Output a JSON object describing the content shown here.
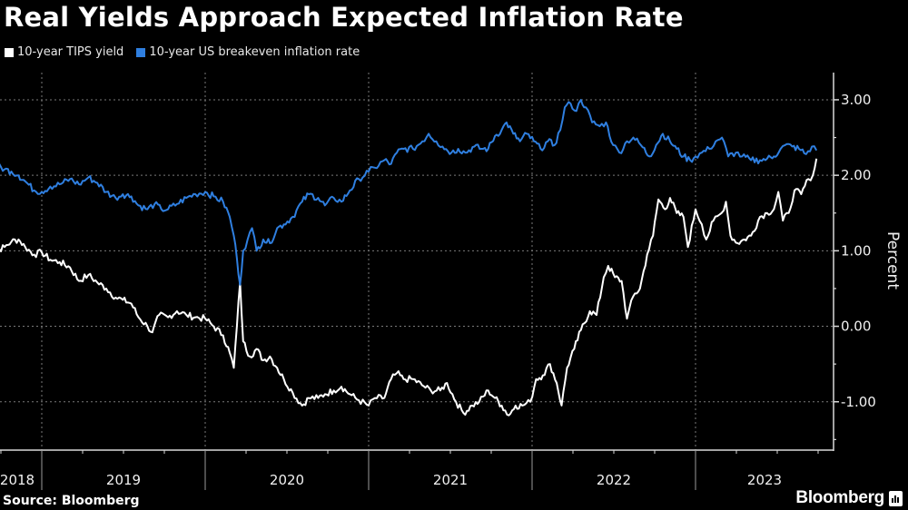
{
  "title": "Real Yields Approach Expected Inflation Rate",
  "footer": {
    "source": "Source: Bloomberg",
    "brand": "Bloomberg",
    "brand_icon": "bloomberg-terminal-icon"
  },
  "colors": {
    "background": "#000000",
    "tips": "#ffffff",
    "breakeven": "#2f7fe0",
    "grid": "#7a7a7a",
    "axis": "#d9d9d9"
  },
  "chart_data": {
    "type": "line",
    "title": "Real Yields Approach Expected Inflation Rate",
    "xlabel": "",
    "ylabel": "Percent",
    "y_axis_side": "right",
    "ylim": [
      -1.64,
      3.36
    ],
    "xlim": [
      "2018-09-01",
      "2023-12-31"
    ],
    "y_ticks": [
      3.0,
      2.0,
      1.0,
      0.0,
      -1.0
    ],
    "y_tick_labels": [
      "3.00",
      "2.00",
      "1.00",
      "0.00",
      "-1.00"
    ],
    "x_tick_labels": [
      "2018",
      "2019",
      "2020",
      "2021",
      "2022",
      "2023"
    ],
    "x_tick_years": [
      2018,
      2019,
      2020,
      2021,
      2022,
      2023
    ],
    "grid": true,
    "legend_position": "top-left",
    "series": [
      {
        "name": "10-year TIPS yield",
        "color": "#ffffff",
        "points": [
          [
            "2018-09-01",
            0.9
          ],
          [
            "2018-09-20",
            1.0
          ],
          [
            "2018-10-10",
            1.05
          ],
          [
            "2018-10-25",
            1.12
          ],
          [
            "2018-11-10",
            1.15
          ],
          [
            "2018-11-25",
            1.05
          ],
          [
            "2018-12-15",
            0.95
          ],
          [
            "2019-01-01",
            0.98
          ],
          [
            "2019-01-20",
            0.88
          ],
          [
            "2019-02-10",
            0.85
          ],
          [
            "2019-03-05",
            0.78
          ],
          [
            "2019-03-25",
            0.6
          ],
          [
            "2019-04-15",
            0.68
          ],
          [
            "2019-05-05",
            0.58
          ],
          [
            "2019-05-25",
            0.5
          ],
          [
            "2019-06-15",
            0.38
          ],
          [
            "2019-07-01",
            0.35
          ],
          [
            "2019-07-20",
            0.3
          ],
          [
            "2019-08-05",
            0.12
          ],
          [
            "2019-08-25",
            0.0
          ],
          [
            "2019-09-05",
            -0.08
          ],
          [
            "2019-09-20",
            0.15
          ],
          [
            "2019-10-10",
            0.12
          ],
          [
            "2019-10-30",
            0.2
          ],
          [
            "2019-11-20",
            0.15
          ],
          [
            "2019-12-10",
            0.12
          ],
          [
            "2020-01-01",
            0.1
          ],
          [
            "2020-01-20",
            0.0
          ],
          [
            "2020-02-10",
            -0.12
          ],
          [
            "2020-02-25",
            -0.35
          ],
          [
            "2020-03-05",
            -0.55
          ],
          [
            "2020-03-12",
            0.0
          ],
          [
            "2020-03-19",
            0.58
          ],
          [
            "2020-03-26",
            -0.2
          ],
          [
            "2020-04-10",
            -0.4
          ],
          [
            "2020-04-25",
            -0.3
          ],
          [
            "2020-05-10",
            -0.45
          ],
          [
            "2020-05-25",
            -0.4
          ],
          [
            "2020-06-10",
            -0.55
          ],
          [
            "2020-06-25",
            -0.7
          ],
          [
            "2020-07-15",
            -0.88
          ],
          [
            "2020-08-05",
            -1.05
          ],
          [
            "2020-08-20",
            -0.95
          ],
          [
            "2020-09-10",
            -0.95
          ],
          [
            "2020-09-25",
            -0.9
          ],
          [
            "2020-10-15",
            -0.85
          ],
          [
            "2020-11-01",
            -0.8
          ],
          [
            "2020-11-20",
            -0.9
          ],
          [
            "2020-12-10",
            -0.98
          ],
          [
            "2021-01-01",
            -1.05
          ],
          [
            "2021-01-15",
            -0.95
          ],
          [
            "2021-02-05",
            -0.95
          ],
          [
            "2021-02-20",
            -0.7
          ],
          [
            "2021-03-05",
            -0.62
          ],
          [
            "2021-03-20",
            -0.7
          ],
          [
            "2021-04-10",
            -0.7
          ],
          [
            "2021-04-30",
            -0.78
          ],
          [
            "2021-05-20",
            -0.85
          ],
          [
            "2021-06-10",
            -0.85
          ],
          [
            "2021-06-25",
            -0.75
          ],
          [
            "2021-07-15",
            -1.0
          ],
          [
            "2021-08-01",
            -1.15
          ],
          [
            "2021-08-20",
            -1.05
          ],
          [
            "2021-09-05",
            -1.0
          ],
          [
            "2021-09-25",
            -0.85
          ],
          [
            "2021-10-10",
            -0.95
          ],
          [
            "2021-10-25",
            -1.05
          ],
          [
            "2021-11-10",
            -1.18
          ],
          [
            "2021-11-25",
            -1.05
          ],
          [
            "2021-12-10",
            -1.05
          ],
          [
            "2021-12-28",
            -1.0
          ],
          [
            "2022-01-10",
            -0.7
          ],
          [
            "2022-01-25",
            -0.65
          ],
          [
            "2022-02-10",
            -0.5
          ],
          [
            "2022-02-25",
            -0.75
          ],
          [
            "2022-03-08",
            -1.05
          ],
          [
            "2022-03-20",
            -0.55
          ],
          [
            "2022-04-05",
            -0.3
          ],
          [
            "2022-04-20",
            -0.05
          ],
          [
            "2022-05-10",
            0.2
          ],
          [
            "2022-05-25",
            0.15
          ],
          [
            "2022-06-10",
            0.65
          ],
          [
            "2022-06-20",
            0.8
          ],
          [
            "2022-07-05",
            0.65
          ],
          [
            "2022-07-20",
            0.6
          ],
          [
            "2022-08-01",
            0.1
          ],
          [
            "2022-08-15",
            0.4
          ],
          [
            "2022-08-30",
            0.5
          ],
          [
            "2022-09-15",
            0.95
          ],
          [
            "2022-09-28",
            1.2
          ],
          [
            "2022-10-10",
            1.68
          ],
          [
            "2022-10-25",
            1.55
          ],
          [
            "2022-11-05",
            1.7
          ],
          [
            "2022-11-20",
            1.5
          ],
          [
            "2022-12-05",
            1.45
          ],
          [
            "2022-12-15",
            1.05
          ],
          [
            "2023-01-01",
            1.55
          ],
          [
            "2023-01-15",
            1.35
          ],
          [
            "2023-01-25",
            1.15
          ],
          [
            "2023-02-10",
            1.4
          ],
          [
            "2023-02-28",
            1.5
          ],
          [
            "2023-03-10",
            1.65
          ],
          [
            "2023-03-20",
            1.2
          ],
          [
            "2023-04-05",
            1.1
          ],
          [
            "2023-04-20",
            1.15
          ],
          [
            "2023-05-05",
            1.2
          ],
          [
            "2023-05-25",
            1.45
          ],
          [
            "2023-06-10",
            1.5
          ],
          [
            "2023-06-25",
            1.55
          ],
          [
            "2023-07-05",
            1.78
          ],
          [
            "2023-07-15",
            1.4
          ],
          [
            "2023-07-28",
            1.5
          ],
          [
            "2023-08-10",
            1.8
          ],
          [
            "2023-08-25",
            1.75
          ],
          [
            "2023-09-10",
            1.95
          ],
          [
            "2023-09-20",
            2.0
          ],
          [
            "2023-09-28",
            2.22
          ]
        ]
      },
      {
        "name": "10-year US breakeven inflation rate",
        "color": "#2f7fe0",
        "points": [
          [
            "2018-09-01",
            2.15
          ],
          [
            "2018-09-20",
            2.13
          ],
          [
            "2018-10-10",
            2.08
          ],
          [
            "2018-10-25",
            2.05
          ],
          [
            "2018-11-10",
            2.0
          ],
          [
            "2018-11-25",
            1.92
          ],
          [
            "2018-12-15",
            1.8
          ],
          [
            "2019-01-01",
            1.78
          ],
          [
            "2019-01-20",
            1.85
          ],
          [
            "2019-02-10",
            1.88
          ],
          [
            "2019-03-05",
            1.95
          ],
          [
            "2019-03-25",
            1.88
          ],
          [
            "2019-04-15",
            1.97
          ],
          [
            "2019-05-05",
            1.9
          ],
          [
            "2019-05-25",
            1.78
          ],
          [
            "2019-06-15",
            1.7
          ],
          [
            "2019-07-01",
            1.75
          ],
          [
            "2019-07-20",
            1.72
          ],
          [
            "2019-08-05",
            1.6
          ],
          [
            "2019-08-25",
            1.55
          ],
          [
            "2019-09-10",
            1.62
          ],
          [
            "2019-09-25",
            1.55
          ],
          [
            "2019-10-10",
            1.55
          ],
          [
            "2019-10-30",
            1.62
          ],
          [
            "2019-11-20",
            1.7
          ],
          [
            "2019-12-10",
            1.75
          ],
          [
            "2020-01-01",
            1.78
          ],
          [
            "2020-01-20",
            1.72
          ],
          [
            "2020-02-10",
            1.65
          ],
          [
            "2020-02-25",
            1.45
          ],
          [
            "2020-03-05",
            1.2
          ],
          [
            "2020-03-12",
            0.9
          ],
          [
            "2020-03-19",
            0.55
          ],
          [
            "2020-03-26",
            1.0
          ],
          [
            "2020-04-05",
            1.15
          ],
          [
            "2020-04-15",
            1.3
          ],
          [
            "2020-04-25",
            1.0
          ],
          [
            "2020-05-10",
            1.15
          ],
          [
            "2020-05-25",
            1.1
          ],
          [
            "2020-06-10",
            1.3
          ],
          [
            "2020-06-25",
            1.35
          ],
          [
            "2020-07-15",
            1.45
          ],
          [
            "2020-08-05",
            1.65
          ],
          [
            "2020-08-20",
            1.75
          ],
          [
            "2020-09-10",
            1.7
          ],
          [
            "2020-09-25",
            1.6
          ],
          [
            "2020-10-15",
            1.7
          ],
          [
            "2020-11-01",
            1.65
          ],
          [
            "2020-11-20",
            1.8
          ],
          [
            "2020-12-10",
            1.95
          ],
          [
            "2021-01-01",
            2.05
          ],
          [
            "2021-01-15",
            2.1
          ],
          [
            "2021-02-05",
            2.2
          ],
          [
            "2021-02-20",
            2.15
          ],
          [
            "2021-03-05",
            2.3
          ],
          [
            "2021-03-20",
            2.35
          ],
          [
            "2021-04-10",
            2.35
          ],
          [
            "2021-05-01",
            2.45
          ],
          [
            "2021-05-15",
            2.55
          ],
          [
            "2021-06-01",
            2.45
          ],
          [
            "2021-06-15",
            2.38
          ],
          [
            "2021-07-05",
            2.3
          ],
          [
            "2021-07-20",
            2.35
          ],
          [
            "2021-08-05",
            2.3
          ],
          [
            "2021-08-25",
            2.38
          ],
          [
            "2021-09-10",
            2.35
          ],
          [
            "2021-09-25",
            2.35
          ],
          [
            "2021-10-10",
            2.52
          ],
          [
            "2021-10-25",
            2.6
          ],
          [
            "2021-11-05",
            2.7
          ],
          [
            "2021-11-20",
            2.55
          ],
          [
            "2021-12-05",
            2.45
          ],
          [
            "2021-12-20",
            2.55
          ],
          [
            "2022-01-05",
            2.45
          ],
          [
            "2022-01-20",
            2.35
          ],
          [
            "2022-02-05",
            2.45
          ],
          [
            "2022-02-20",
            2.4
          ],
          [
            "2022-03-05",
            2.6
          ],
          [
            "2022-03-15",
            2.9
          ],
          [
            "2022-03-28",
            2.95
          ],
          [
            "2022-04-10",
            2.85
          ],
          [
            "2022-04-20",
            3.0
          ],
          [
            "2022-05-01",
            2.9
          ],
          [
            "2022-05-15",
            2.7
          ],
          [
            "2022-06-01",
            2.65
          ],
          [
            "2022-06-15",
            2.7
          ],
          [
            "2022-07-01",
            2.4
          ],
          [
            "2022-07-15",
            2.3
          ],
          [
            "2022-08-01",
            2.45
          ],
          [
            "2022-08-15",
            2.5
          ],
          [
            "2022-09-01",
            2.4
          ],
          [
            "2022-09-20",
            2.25
          ],
          [
            "2022-10-05",
            2.4
          ],
          [
            "2022-10-20",
            2.55
          ],
          [
            "2022-11-05",
            2.45
          ],
          [
            "2022-11-20",
            2.35
          ],
          [
            "2022-12-05",
            2.25
          ],
          [
            "2022-12-20",
            2.2
          ],
          [
            "2023-01-01",
            2.25
          ],
          [
            "2023-01-15",
            2.3
          ],
          [
            "2023-02-01",
            2.35
          ],
          [
            "2023-02-15",
            2.45
          ],
          [
            "2023-03-01",
            2.5
          ],
          [
            "2023-03-15",
            2.25
          ],
          [
            "2023-04-01",
            2.3
          ],
          [
            "2023-04-15",
            2.25
          ],
          [
            "2023-05-05",
            2.2
          ],
          [
            "2023-05-25",
            2.2
          ],
          [
            "2023-06-10",
            2.22
          ],
          [
            "2023-06-25",
            2.25
          ],
          [
            "2023-07-10",
            2.35
          ],
          [
            "2023-07-20",
            2.4
          ],
          [
            "2023-08-05",
            2.38
          ],
          [
            "2023-08-20",
            2.35
          ],
          [
            "2023-09-05",
            2.28
          ],
          [
            "2023-09-18",
            2.38
          ],
          [
            "2023-09-28",
            2.33
          ]
        ]
      }
    ]
  }
}
